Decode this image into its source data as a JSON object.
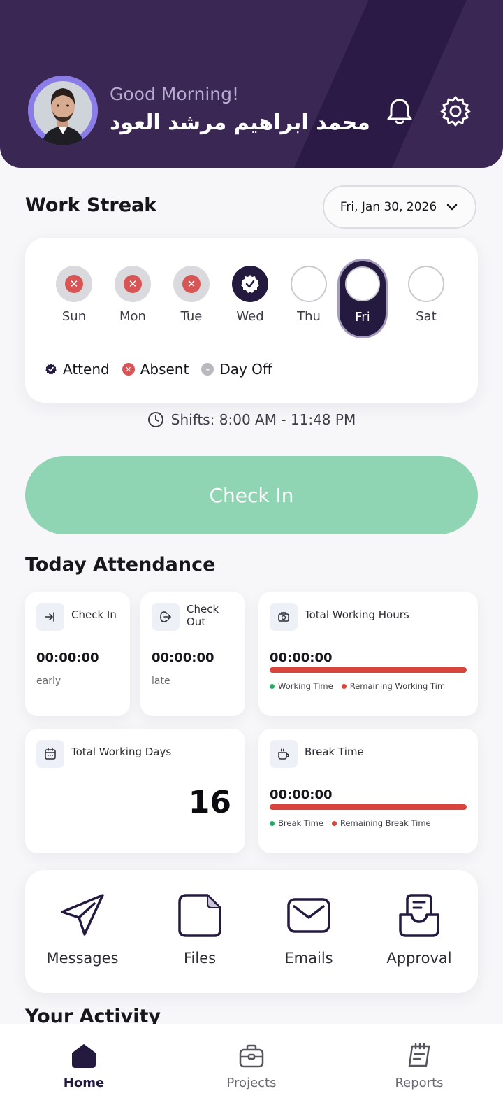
{
  "header": {
    "greeting": "Good Morning!",
    "user_name": "محمد ابراهيم مرشد العود",
    "icons": [
      "bell-icon",
      "gear-icon"
    ]
  },
  "work_streak": {
    "title": "Work Streak",
    "date": "Fri, Jan 30, 2026",
    "days": [
      {
        "label": "Sun",
        "status": "absent"
      },
      {
        "label": "Mon",
        "status": "absent"
      },
      {
        "label": "Tue",
        "status": "absent"
      },
      {
        "label": "Wed",
        "status": "attend"
      },
      {
        "label": "Thu",
        "status": "none"
      },
      {
        "label": "Fri",
        "status": "selected"
      },
      {
        "label": "Sat",
        "status": "none"
      }
    ],
    "legend": {
      "attend": "Attend",
      "absent": "Absent",
      "day_off": "Day Off"
    }
  },
  "shifts": "Shifts: 8:00 AM - 11:48 PM",
  "check_in_button": "Check In",
  "today_attendance": {
    "title": "Today Attendance",
    "check_in": {
      "title": "Check In",
      "value": "00:00:00",
      "sub": "early"
    },
    "check_out": {
      "title": "Check Out",
      "value": "00:00:00",
      "sub": "late"
    },
    "total_working_hours": {
      "title": "Total Working Hours",
      "value": "00:00:00",
      "legend_a": "Working Time",
      "legend_b": "Remaining Working Tim",
      "progress": 0
    },
    "total_working_days": {
      "title": "Total Working Days",
      "value": "16"
    },
    "break_time": {
      "title": "Break Time",
      "value": "00:00:00",
      "legend_a": "Break Time",
      "legend_b": "Remaining Break Time",
      "progress": 0
    }
  },
  "quick_actions": {
    "messages": "Messages",
    "files": "Files",
    "emails": "Emails",
    "approval": "Approval"
  },
  "your_activity": "Your Activity",
  "nav": {
    "home": "Home",
    "projects": "Projects",
    "reports": "Reports"
  },
  "colors": {
    "header_bg": "#3a2754",
    "accent_dark": "#24193f",
    "absent_red": "#d85555",
    "checkin_green": "#8fd4b3",
    "bar_red": "#d6443c",
    "legend_green": "#2ea66b"
  }
}
